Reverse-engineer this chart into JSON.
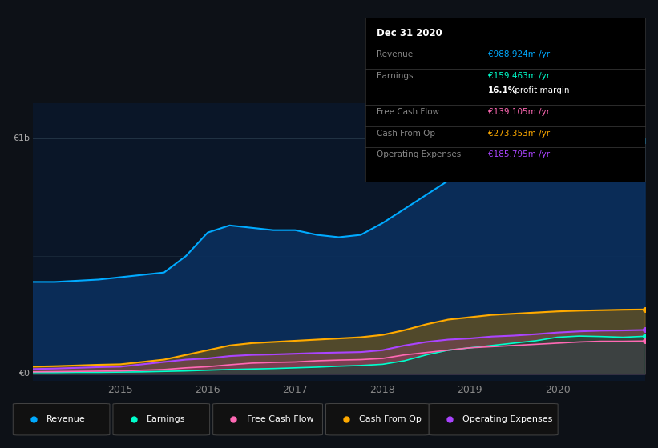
{
  "bg_color": "#0d1117",
  "plot_bg": "#0a1628",
  "years": [
    2014.0,
    2014.25,
    2014.5,
    2014.75,
    2015.0,
    2015.25,
    2015.5,
    2015.75,
    2016.0,
    2016.25,
    2016.5,
    2016.75,
    2017.0,
    2017.25,
    2017.5,
    2017.75,
    2018.0,
    2018.25,
    2018.5,
    2018.75,
    2019.0,
    2019.25,
    2019.5,
    2019.75,
    2020.0,
    2020.25,
    2020.5,
    2020.75,
    2021.0
  ],
  "revenue": [
    390,
    390,
    395,
    400,
    410,
    420,
    430,
    500,
    600,
    630,
    620,
    610,
    610,
    590,
    580,
    590,
    640,
    700,
    760,
    820,
    870,
    910,
    950,
    980,
    1020,
    1040,
    1010,
    990,
    989
  ],
  "earnings": [
    5,
    5,
    6,
    6,
    7,
    8,
    10,
    12,
    15,
    18,
    20,
    22,
    25,
    28,
    32,
    35,
    40,
    55,
    80,
    100,
    110,
    120,
    130,
    140,
    155,
    160,
    158,
    155,
    159
  ],
  "free_cash_flow": [
    8,
    9,
    10,
    11,
    12,
    15,
    18,
    25,
    30,
    38,
    45,
    48,
    50,
    55,
    58,
    60,
    65,
    80,
    90,
    100,
    110,
    115,
    120,
    125,
    130,
    135,
    138,
    138,
    139
  ],
  "cash_from_op": [
    30,
    32,
    35,
    38,
    40,
    50,
    60,
    80,
    100,
    120,
    130,
    135,
    140,
    145,
    150,
    155,
    165,
    185,
    210,
    230,
    240,
    250,
    255,
    260,
    265,
    268,
    270,
    272,
    273
  ],
  "operating_expenses": [
    20,
    22,
    25,
    28,
    30,
    40,
    50,
    60,
    65,
    75,
    80,
    82,
    85,
    88,
    90,
    92,
    100,
    120,
    135,
    145,
    150,
    158,
    162,
    168,
    175,
    180,
    183,
    184,
    186
  ],
  "revenue_color": "#00aaff",
  "earnings_color": "#00ffcc",
  "fcf_color": "#ff69b4",
  "cashop_color": "#ffaa00",
  "opex_color": "#aa44ff",
  "legend_items": [
    {
      "label": "Revenue",
      "color": "#00aaff"
    },
    {
      "label": "Earnings",
      "color": "#00ffcc"
    },
    {
      "label": "Free Cash Flow",
      "color": "#ff69b4"
    },
    {
      "label": "Cash From Op",
      "color": "#ffaa00"
    },
    {
      "label": "Operating Expenses",
      "color": "#aa44ff"
    }
  ],
  "info_box": {
    "title": "Dec 31 2020",
    "rows": [
      {
        "label": "Revenue",
        "value": "€988.924m /yr",
        "value_color": "#00aaff",
        "divider_below": true
      },
      {
        "label": "Earnings",
        "value": "€159.463m /yr",
        "value_color": "#00ffcc",
        "divider_below": false
      },
      {
        "label": "",
        "value": "16.1% profit margin",
        "value_color": "#ffffff",
        "divider_below": true
      },
      {
        "label": "Free Cash Flow",
        "value": "€139.105m /yr",
        "value_color": "#ff69b4",
        "divider_below": true
      },
      {
        "label": "Cash From Op",
        "value": "€273.353m /yr",
        "value_color": "#ffaa00",
        "divider_below": true
      },
      {
        "label": "Operating Expenses",
        "value": "€185.795m /yr",
        "value_color": "#aa44ff",
        "divider_below": false
      }
    ]
  }
}
